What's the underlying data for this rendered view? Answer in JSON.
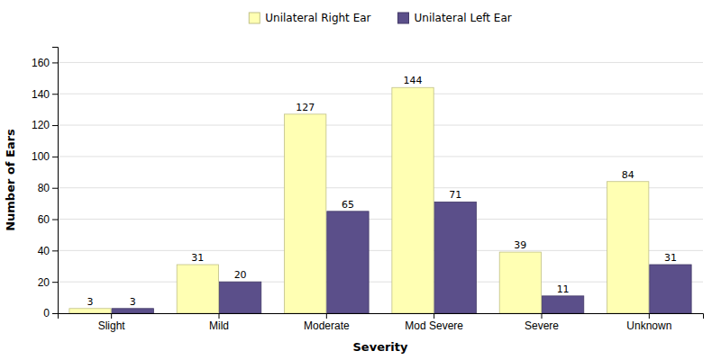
{
  "chart_data": {
    "type": "bar",
    "categories": [
      "Slight",
      "Mild",
      "Moderate",
      "Mod Severe",
      "Severe",
      "Unknown"
    ],
    "series": [
      {
        "name": "Unilateral Right Ear",
        "color": "#FFFFB3",
        "values": [
          3,
          31,
          127,
          144,
          39,
          84
        ]
      },
      {
        "name": "Unilateral Left Ear",
        "color": "#5B4F8A",
        "values": [
          3,
          20,
          65,
          71,
          11,
          31
        ]
      }
    ],
    "xlabel": "Severity",
    "ylabel": "Number of Ears",
    "ylim": [
      0,
      170
    ],
    "yticks": [
      0,
      20,
      40,
      60,
      80,
      100,
      120,
      140,
      160
    ],
    "grid": true,
    "legend": "top",
    "data_labels": true
  }
}
